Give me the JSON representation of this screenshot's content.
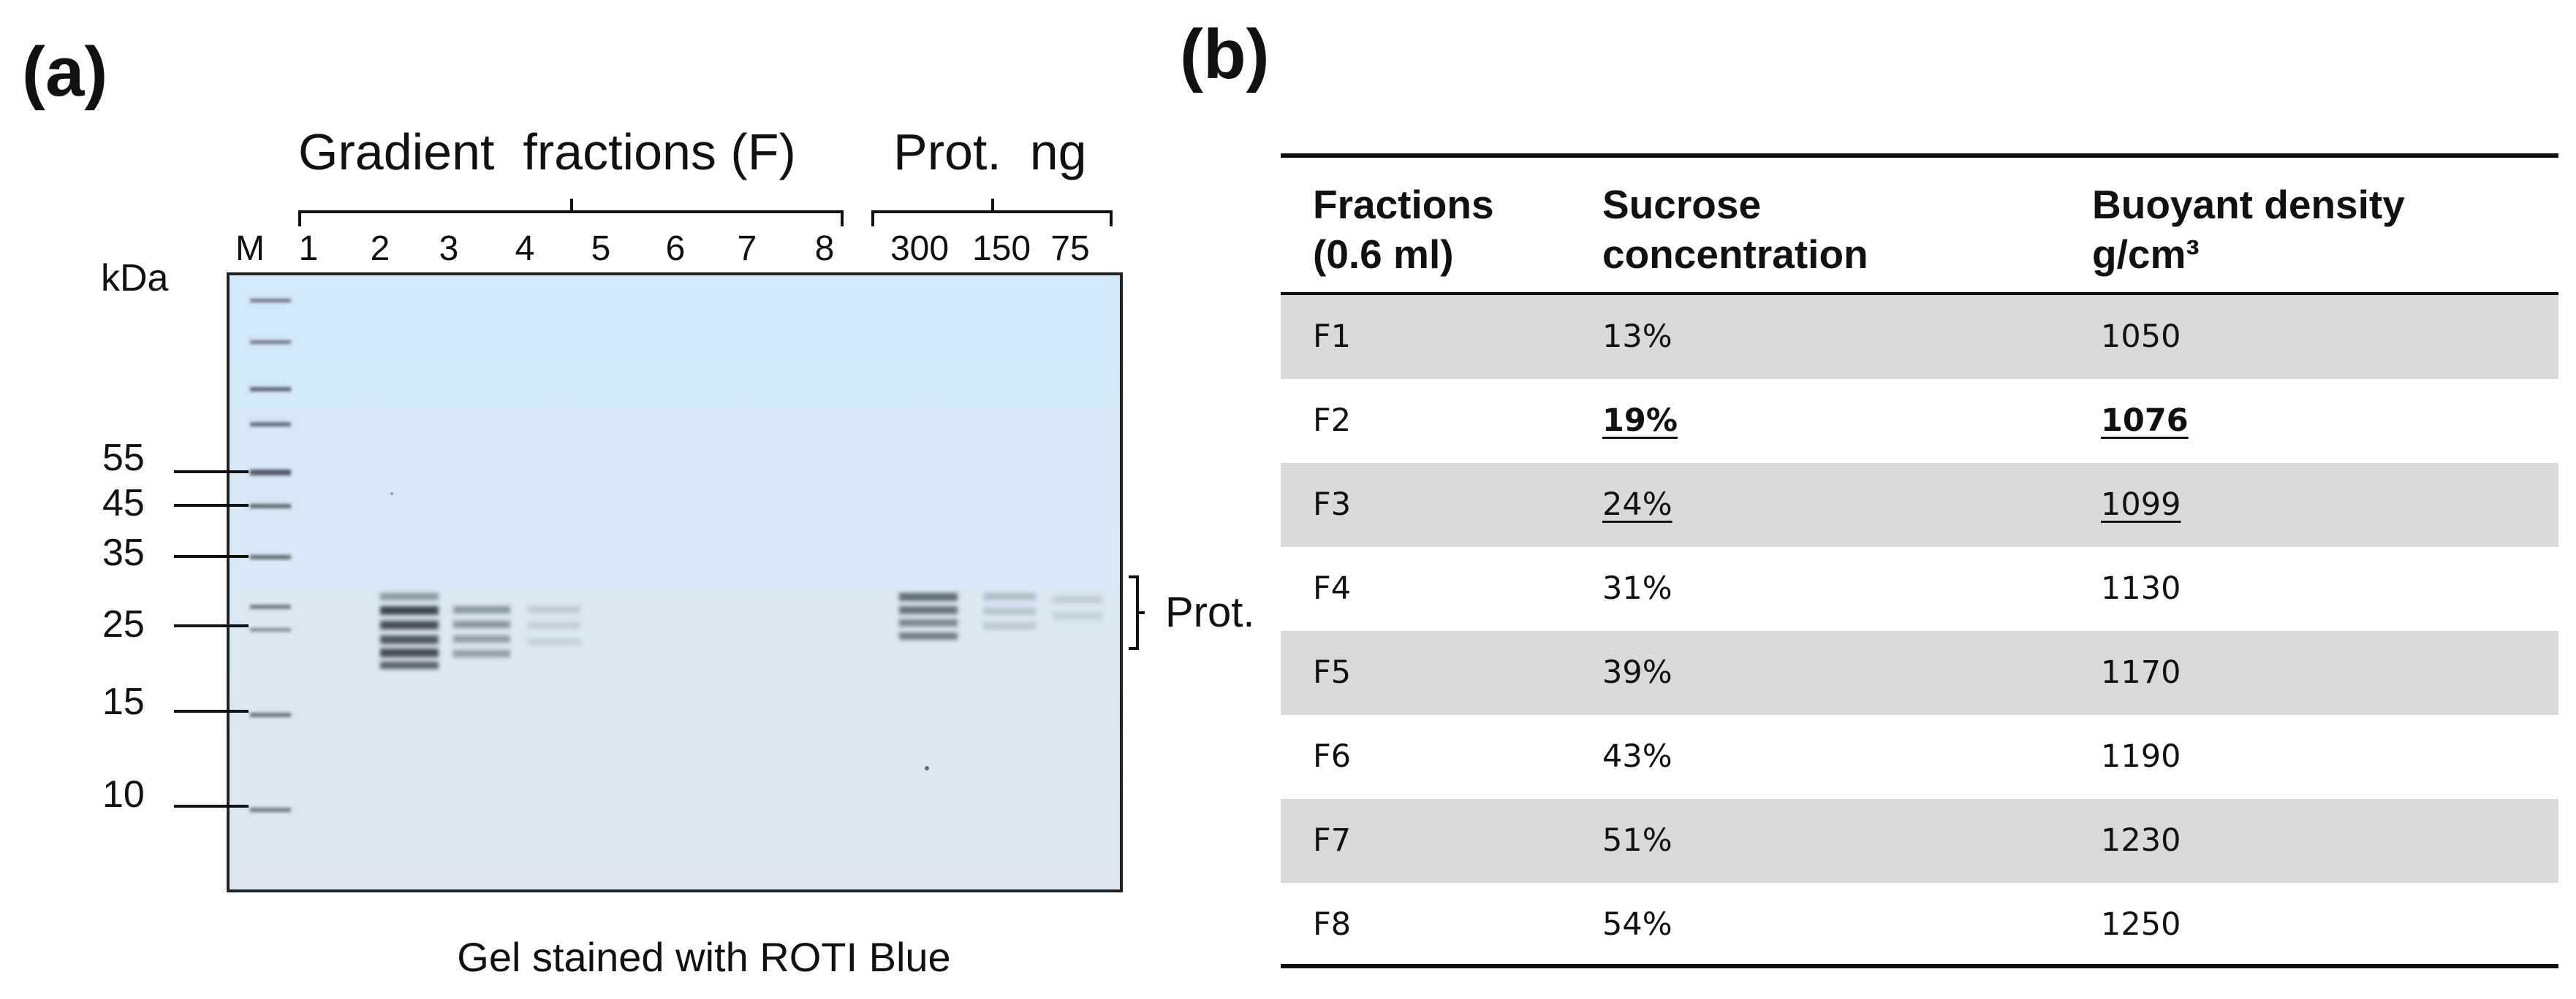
{
  "panel_a": {
    "label": "(a)",
    "header_gradient": "Gradient  fractions (F)",
    "header_prot": "Prot.  ng",
    "lanes": [
      "M",
      "1",
      "2",
      "3",
      "4",
      "5",
      "6",
      "7",
      "8",
      "300",
      "150",
      "75"
    ],
    "kda_label": "kDa",
    "markers": [
      "55",
      "45",
      "35",
      "25",
      "15",
      "10"
    ],
    "prot_label": "Prot.",
    "caption": "Gel stained with ROTI Blue",
    "colors": {
      "gel_background": "#d6e9f7",
      "band": "#3a3f4a",
      "frame": "#222222"
    }
  },
  "panel_b": {
    "label": "(b)",
    "headers": {
      "col1": [
        "Fractions",
        "(0.6 ml)"
      ],
      "col2": [
        "Sucrose",
        "concentration"
      ],
      "col3": [
        "Buoyant density",
        "g/cm³"
      ]
    },
    "rows": [
      {
        "fraction": "F1",
        "sucrose": "13%",
        "density": "1050",
        "style": "normal",
        "shaded": true
      },
      {
        "fraction": "F2",
        "sucrose": "19%",
        "density": "1076",
        "style": "bold-underline",
        "shaded": false
      },
      {
        "fraction": "F3",
        "sucrose": "24%",
        "density": "1099",
        "style": "underline",
        "shaded": true
      },
      {
        "fraction": "F4",
        "sucrose": "31%",
        "density": "1130",
        "style": "normal",
        "shaded": false
      },
      {
        "fraction": "F5",
        "sucrose": "39%",
        "density": "1170",
        "style": "normal",
        "shaded": true
      },
      {
        "fraction": "F6",
        "sucrose": "43%",
        "density": "1190",
        "style": "normal",
        "shaded": false
      },
      {
        "fraction": "F7",
        "sucrose": "51%",
        "density": "1230",
        "style": "normal",
        "shaded": true
      },
      {
        "fraction": "F8",
        "sucrose": "54%",
        "density": "1250",
        "style": "normal",
        "shaded": false
      }
    ],
    "colors": {
      "row_shade": "#d9d9d9",
      "rule": "#111111"
    }
  }
}
